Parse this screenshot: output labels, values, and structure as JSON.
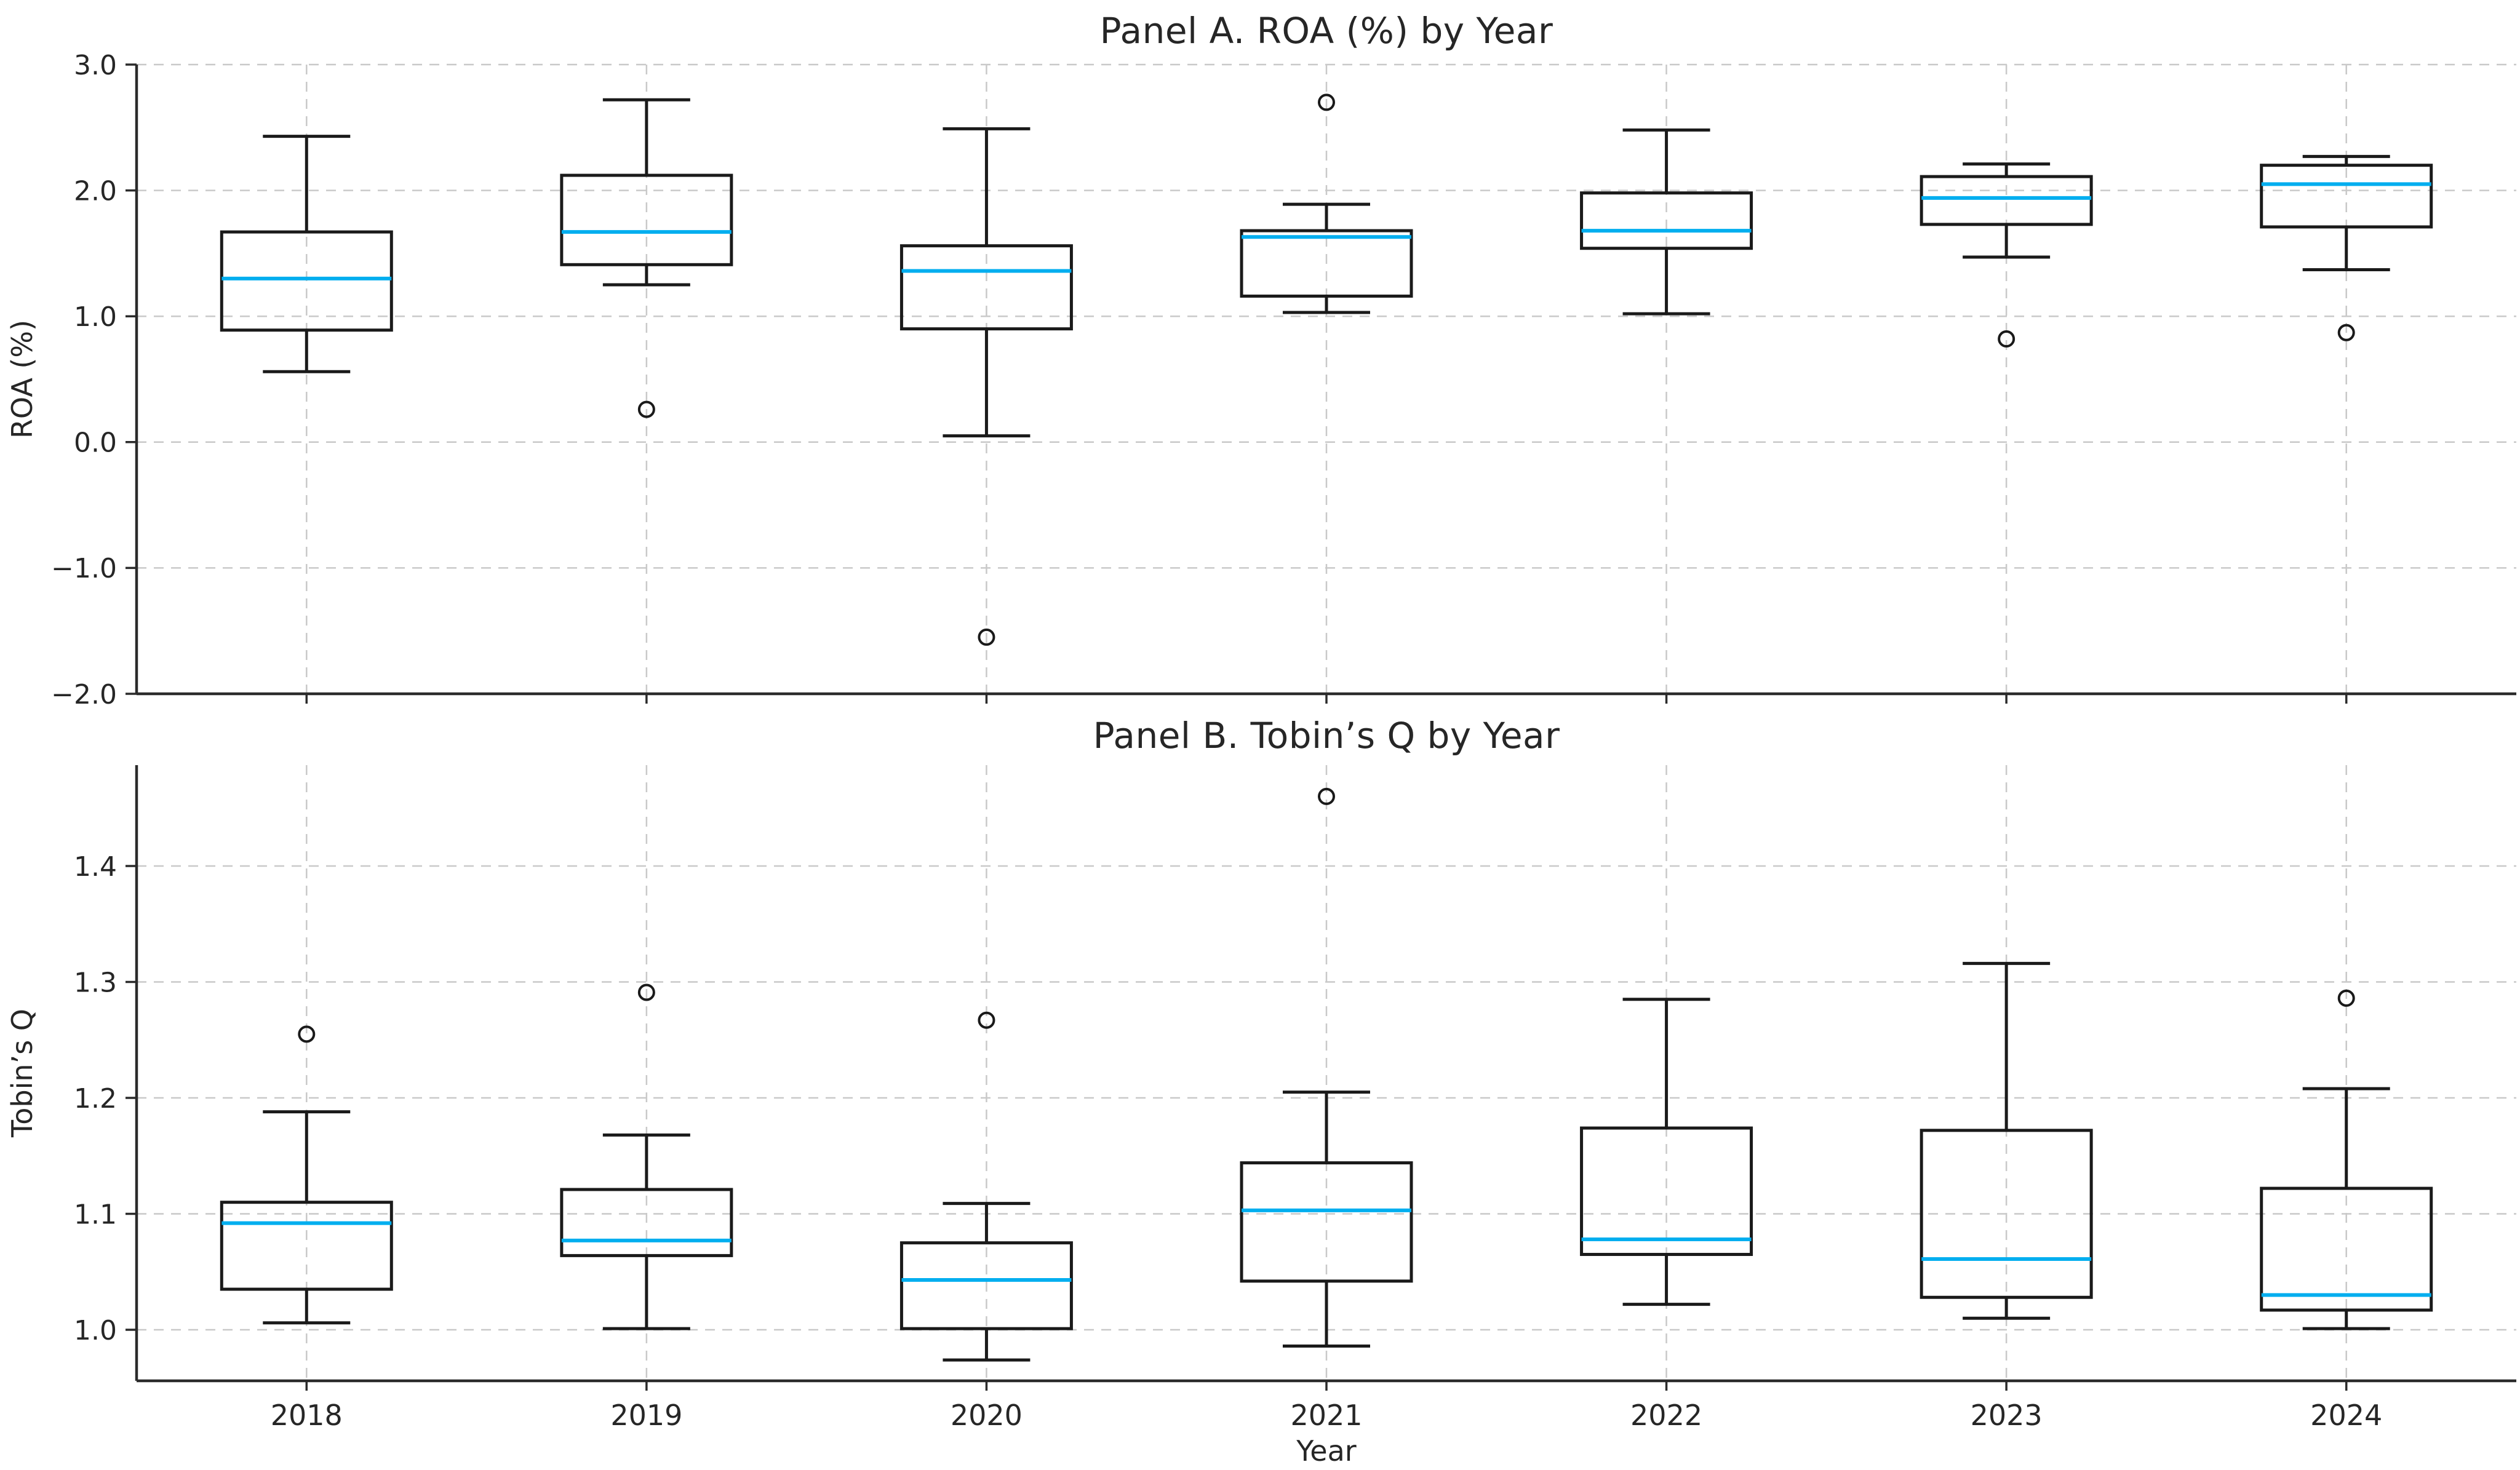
{
  "figure": {
    "background": "#ffffff"
  },
  "colors": {
    "box_edge": "#1a1a1a",
    "whisker": "#1a1a1a",
    "median": "#00aeef",
    "outlier_edge": "#1a1a1a",
    "grid": "#c9c9c9",
    "spine": "#2b2b2b",
    "text": "#262626"
  },
  "x_axis": {
    "label": "Year",
    "categories": [
      "2018",
      "2019",
      "2020",
      "2021",
      "2022",
      "2023",
      "2024"
    ]
  },
  "chart_data": [
    {
      "type": "box",
      "title": "Panel A. ROA (%) by Year",
      "xlabel": "",
      "ylabel": "ROA (%)",
      "ylim": [
        -2.0,
        3.0
      ],
      "yticks": [
        3.0,
        2.0,
        1.0,
        0.0,
        -1.0,
        -2.0
      ],
      "ytick_labels": [
        "3.0",
        "2.0",
        "1.0",
        "0.0",
        "−1.0",
        "−2.0"
      ],
      "grid": true,
      "legend": false,
      "categories": [
        "2018",
        "2019",
        "2020",
        "2021",
        "2022",
        "2023",
        "2024"
      ],
      "series": [
        {
          "label": "2018",
          "whislo": 0.56,
          "q1": 0.89,
          "med": 1.3,
          "q3": 1.67,
          "whishi": 2.43,
          "outliers": []
        },
        {
          "label": "2019",
          "whislo": 1.25,
          "q1": 1.41,
          "med": 1.67,
          "q3": 2.12,
          "whishi": 2.72,
          "outliers": [
            0.26
          ]
        },
        {
          "label": "2020",
          "whislo": 0.05,
          "q1": 0.9,
          "med": 1.36,
          "q3": 1.56,
          "whishi": 2.49,
          "outliers": [
            -1.55
          ]
        },
        {
          "label": "2021",
          "whislo": 1.03,
          "q1": 1.16,
          "med": 1.63,
          "q3": 1.68,
          "whishi": 1.89,
          "outliers": [
            2.7
          ]
        },
        {
          "label": "2022",
          "whislo": 1.02,
          "q1": 1.54,
          "med": 1.68,
          "q3": 1.98,
          "whishi": 2.48,
          "outliers": []
        },
        {
          "label": "2023",
          "whislo": 1.47,
          "q1": 1.73,
          "med": 1.94,
          "q3": 2.11,
          "whishi": 2.21,
          "outliers": [
            0.82
          ]
        },
        {
          "label": "2024",
          "whislo": 1.37,
          "q1": 1.71,
          "med": 2.05,
          "q3": 2.2,
          "whishi": 2.27,
          "outliers": [
            0.87
          ]
        }
      ]
    },
    {
      "type": "box",
      "title": "Panel B. Tobin’s Q by Year",
      "xlabel": "Year",
      "ylabel": "Tobin’s Q",
      "ylim": [
        0.956,
        1.487
      ],
      "yticks": [
        1.4,
        1.3,
        1.2,
        1.1,
        1.0
      ],
      "ytick_labels": [
        "1.4",
        "1.3",
        "1.2",
        "1.1",
        "1.0"
      ],
      "grid": true,
      "legend": false,
      "categories": [
        "2018",
        "2019",
        "2020",
        "2021",
        "2022",
        "2023",
        "2024"
      ],
      "series": [
        {
          "label": "2018",
          "whislo": 1.006,
          "q1": 1.035,
          "med": 1.092,
          "q3": 1.11,
          "whishi": 1.188,
          "outliers": [
            1.255
          ]
        },
        {
          "label": "2019",
          "whislo": 1.001,
          "q1": 1.064,
          "med": 1.077,
          "q3": 1.121,
          "whishi": 1.168,
          "outliers": [
            1.291
          ]
        },
        {
          "label": "2020",
          "whislo": 0.974,
          "q1": 1.001,
          "med": 1.043,
          "q3": 1.075,
          "whishi": 1.109,
          "outliers": [
            1.267
          ]
        },
        {
          "label": "2021",
          "whislo": 0.986,
          "q1": 1.042,
          "med": 1.103,
          "q3": 1.144,
          "whishi": 1.205,
          "outliers": [
            1.46
          ]
        },
        {
          "label": "2022",
          "whislo": 1.022,
          "q1": 1.065,
          "med": 1.078,
          "q3": 1.174,
          "whishi": 1.285,
          "outliers": []
        },
        {
          "label": "2023",
          "whislo": 1.01,
          "q1": 1.028,
          "med": 1.061,
          "q3": 1.172,
          "whishi": 1.316,
          "outliers": []
        },
        {
          "label": "2024",
          "whislo": 1.001,
          "q1": 1.017,
          "med": 1.03,
          "q3": 1.122,
          "whishi": 1.208,
          "outliers": [
            1.286
          ]
        }
      ]
    }
  ]
}
